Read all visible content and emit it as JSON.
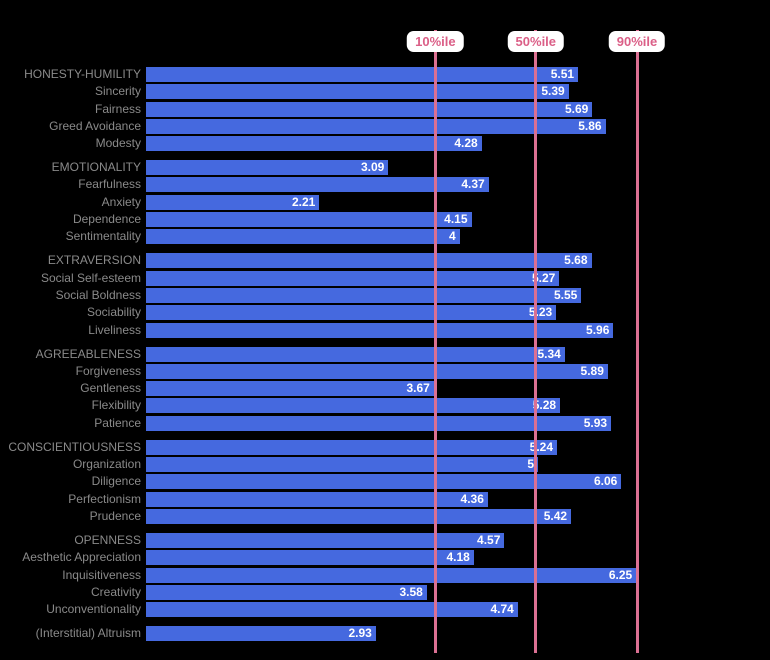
{
  "colors": {
    "background": "#000000",
    "bar": "#4569df",
    "row_label": "#8a8a8a",
    "value_text": "#ffffff",
    "percentile_line": "#db7093",
    "percentile_text": "#db5f87",
    "pill_background": "#ffffff"
  },
  "chart_data": {
    "type": "bar",
    "orientation": "horizontal",
    "axis_range": [
      0,
      7
    ],
    "grid": false,
    "legend": false,
    "percentile_lines": [
      {
        "label": "10%ile",
        "value": 3.69
      },
      {
        "label": "50%ile",
        "value": 4.97
      },
      {
        "label": "90%ile",
        "value": 6.26
      }
    ],
    "groups": [
      {
        "name": "HONESTY-HUMILITY",
        "rows": [
          {
            "label": "HONESTY-HUMILITY",
            "value": 5.51,
            "display": "5.51",
            "header": true
          },
          {
            "label": "Sincerity",
            "value": 5.39,
            "display": "5.39",
            "header": false
          },
          {
            "label": "Fairness",
            "value": 5.69,
            "display": "5.69",
            "header": false
          },
          {
            "label": "Greed Avoidance",
            "value": 5.86,
            "display": "5.86",
            "header": false
          },
          {
            "label": "Modesty",
            "value": 4.28,
            "display": "4.28",
            "header": false
          }
        ]
      },
      {
        "name": "EMOTIONALITY",
        "rows": [
          {
            "label": "EMOTIONALITY",
            "value": 3.09,
            "display": "3.09",
            "header": true
          },
          {
            "label": "Fearfulness",
            "value": 4.37,
            "display": "4.37",
            "header": false
          },
          {
            "label": "Anxiety",
            "value": 2.21,
            "display": "2.21",
            "header": false
          },
          {
            "label": "Dependence",
            "value": 4.15,
            "display": "4.15",
            "header": false
          },
          {
            "label": "Sentimentality",
            "value": 4,
            "display": "4",
            "header": false
          }
        ]
      },
      {
        "name": "EXTRAVERSION",
        "rows": [
          {
            "label": "EXTRAVERSION",
            "value": 5.68,
            "display": "5.68",
            "header": true
          },
          {
            "label": "Social Self-esteem",
            "value": 5.27,
            "display": "5.27",
            "header": false
          },
          {
            "label": "Social Boldness",
            "value": 5.55,
            "display": "5.55",
            "header": false
          },
          {
            "label": "Sociability",
            "value": 5.23,
            "display": "5.23",
            "header": false
          },
          {
            "label": "Liveliness",
            "value": 5.96,
            "display": "5.96",
            "header": false
          }
        ]
      },
      {
        "name": "AGREEABLENESS",
        "rows": [
          {
            "label": "AGREEABLENESS",
            "value": 5.34,
            "display": "5.34",
            "header": true
          },
          {
            "label": "Forgiveness",
            "value": 5.89,
            "display": "5.89",
            "header": false
          },
          {
            "label": "Gentleness",
            "value": 3.67,
            "display": "3.67",
            "header": false
          },
          {
            "label": "Flexibility",
            "value": 5.28,
            "display": "5.28",
            "header": false
          },
          {
            "label": "Patience",
            "value": 5.93,
            "display": "5.93",
            "header": false
          }
        ]
      },
      {
        "name": "CONSCIENTIOUSNESS",
        "rows": [
          {
            "label": "CONSCIENTIOUSNESS",
            "value": 5.24,
            "display": "5.24",
            "header": true
          },
          {
            "label": "Organization",
            "value": 5,
            "display": "5",
            "header": false
          },
          {
            "label": "Diligence",
            "value": 6.06,
            "display": "6.06",
            "header": false
          },
          {
            "label": "Perfectionism",
            "value": 4.36,
            "display": "4.36",
            "header": false
          },
          {
            "label": "Prudence",
            "value": 5.42,
            "display": "5.42",
            "header": false
          }
        ]
      },
      {
        "name": "OPENNESS",
        "rows": [
          {
            "label": "OPENNESS",
            "value": 4.57,
            "display": "4.57",
            "header": true
          },
          {
            "label": "Aesthetic Appreciation",
            "value": 4.18,
            "display": "4.18",
            "header": false
          },
          {
            "label": "Inquisitiveness",
            "value": 6.25,
            "display": "6.25",
            "header": false
          },
          {
            "label": "Creativity",
            "value": 3.58,
            "display": "3.58",
            "header": false
          },
          {
            "label": "Unconventionality",
            "value": 4.74,
            "display": "4.74",
            "header": false
          }
        ]
      },
      {
        "name": "Interstitial",
        "rows": [
          {
            "label": "(Interstitial) Altruism",
            "value": 2.93,
            "display": "2.93",
            "header": false
          }
        ]
      }
    ]
  }
}
